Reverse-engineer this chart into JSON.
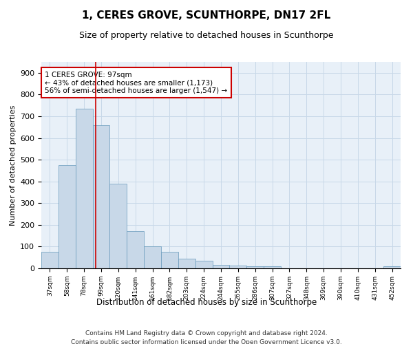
{
  "title": "1, CERES GROVE, SCUNTHORPE, DN17 2FL",
  "subtitle": "Size of property relative to detached houses in Scunthorpe",
  "xlabel": "Distribution of detached houses by size in Scunthorpe",
  "ylabel": "Number of detached properties",
  "categories": [
    "37sqm",
    "58sqm",
    "78sqm",
    "99sqm",
    "120sqm",
    "141sqm",
    "161sqm",
    "182sqm",
    "203sqm",
    "224sqm",
    "244sqm",
    "265sqm",
    "286sqm",
    "307sqm",
    "327sqm",
    "348sqm",
    "369sqm",
    "390sqm",
    "410sqm",
    "431sqm",
    "452sqm"
  ],
  "values": [
    75,
    475,
    735,
    660,
    390,
    170,
    100,
    75,
    45,
    35,
    17,
    12,
    10,
    8,
    0,
    0,
    0,
    0,
    0,
    0,
    10
  ],
  "bar_color": "#c8d8e8",
  "bar_edge_color": "#6699bb",
  "vline_x": 2.68,
  "vline_color": "#cc0000",
  "annotation_line1": "1 CERES GROVE: 97sqm",
  "annotation_line2": "← 43% of detached houses are smaller (1,173)",
  "annotation_line3": "56% of semi-detached houses are larger (1,547) →",
  "annotation_box_color": "#ffffff",
  "annotation_box_edge": "#cc0000",
  "ylim": [
    0,
    950
  ],
  "yticks": [
    0,
    100,
    200,
    300,
    400,
    500,
    600,
    700,
    800,
    900
  ],
  "grid_color": "#c8d8e8",
  "background_color": "#e8f0f8",
  "footer_line1": "Contains HM Land Registry data © Crown copyright and database right 2024.",
  "footer_line2": "Contains public sector information licensed under the Open Government Licence v3.0.",
  "title_fontsize": 11,
  "subtitle_fontsize": 9,
  "annotation_fontsize": 7.5
}
